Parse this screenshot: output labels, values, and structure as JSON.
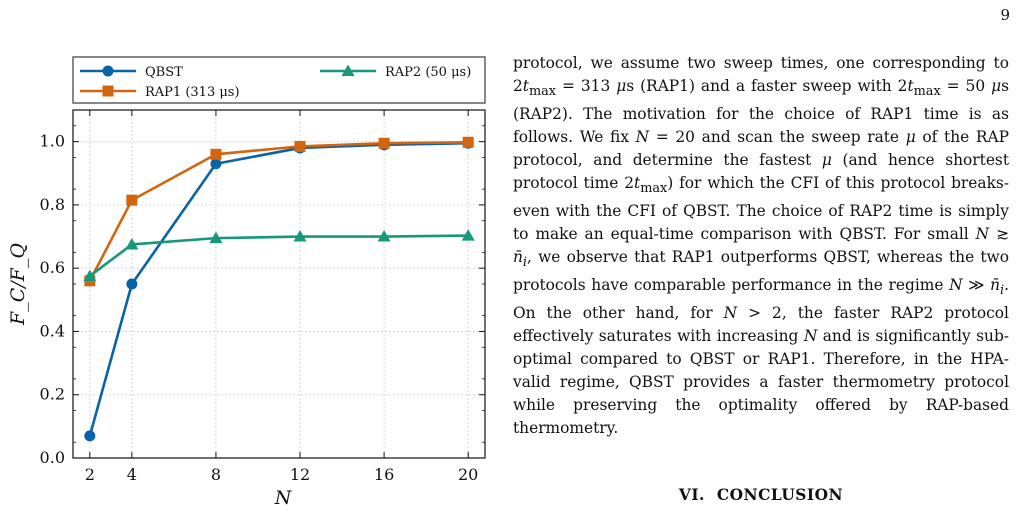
{
  "page": {
    "number": "9"
  },
  "figure": {
    "chart_data": {
      "type": "line",
      "xlabel": "N",
      "ylabel": "F_C/F_Q",
      "x": [
        2,
        4,
        8,
        12,
        16,
        20
      ],
      "xticks": [
        "2",
        "4",
        "8",
        "12",
        "16",
        "20"
      ],
      "yticks": [
        "0.0",
        "0.2",
        "0.4",
        "0.6",
        "0.8",
        "1.0"
      ],
      "xlim": [
        1.2,
        20.8
      ],
      "ylim": [
        0.0,
        1.1
      ],
      "grid": true,
      "legend_position": "top",
      "series": [
        {
          "name": "QBST",
          "marker": "circle",
          "color": "#0a62a7",
          "values": [
            0.07,
            0.55,
            0.93,
            0.98,
            0.99,
            0.995
          ]
        },
        {
          "name": "RAP1 (313 μs)",
          "marker": "square",
          "color": "#d4650f",
          "values": [
            0.56,
            0.815,
            0.96,
            0.985,
            0.995,
            0.998
          ]
        },
        {
          "name": "RAP2 (50 μs)",
          "marker": "triangle",
          "color": "#17987a",
          "values": [
            0.575,
            0.675,
            0.695,
            0.7,
            0.7,
            0.703
          ]
        }
      ]
    }
  },
  "text": {
    "paragraph_html": "protocol, we assume two sweep times, one corresponding to 2<i>t</i><sub>max</sub> = 313 <i>μ</i>s (RAP1) and a faster sweep with 2<i>t</i><sub>max</sub> = 50 <i>μ</i>s (RAP2). The motivation for the choice of RAP1 time is as follows. We fix <i>N</i> = 20 and scan the sweep rate <i>μ</i> of the RAP protocol, and determine the fastest <i>μ</i> (and hence shortest protocol time 2<i>t</i><sub>max</sub>) for which the CFI of this protocol breaks-even with the CFI of QBST. The choice of RAP2 time is simply to make an equal-time comparison with QBST. For small <i>N</i> ≳ <i>n̄</i><sub><i>i</i></sub>, we observe that RAP1 outperforms QBST, whereas the two protocols have comparable performance in the regime <i>N</i> ≫ <i>n̄</i><sub><i>i</i></sub>. On the other hand, for <i>N</i> &gt; 2, the faster RAP2 protocol effectively saturates with increasing <i>N</i> and is significantly sub-optimal compared to QBST or RAP1. Therefore, in the HPA-valid regime, QBST provides a faster thermometry protocol while preserving the optimality offered by RAP-based thermometry.",
    "section_number": "VI.",
    "section_title": "CONCLUSION"
  }
}
